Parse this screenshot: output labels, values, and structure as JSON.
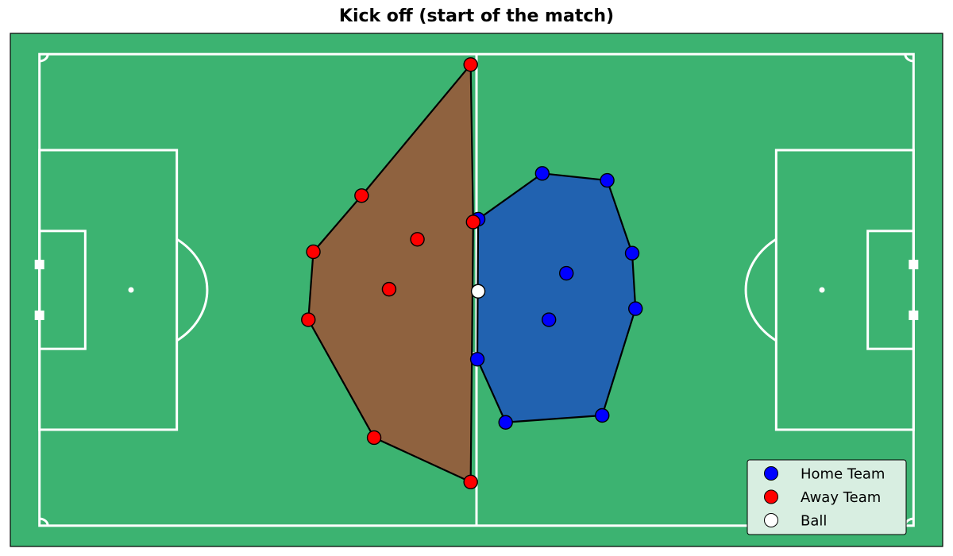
{
  "chart_data": {
    "type": "scatter",
    "title": "Kick off (start of the match)",
    "pitch_length_m": 105,
    "pitch_width_m": 68,
    "xlim": [
      -3.5,
      108.5
    ],
    "ylim": [
      -3,
      71
    ],
    "grid": false,
    "colors": {
      "pitch": "#3cb371",
      "lines": "#ffffff",
      "home": "#0000ff",
      "away": "#ff0000",
      "ball": "#ffffff",
      "home_hull": "#2162b0",
      "away_hull": "#8f623f",
      "hull_edge": "#000000"
    },
    "series": [
      {
        "name": "Home Team",
        "points": [
          [
            52.7,
            44.2
          ],
          [
            60.4,
            50.8
          ],
          [
            68.2,
            49.8
          ],
          [
            71.2,
            39.3
          ],
          [
            63.3,
            36.4
          ],
          [
            71.6,
            31.3
          ],
          [
            61.2,
            29.7
          ],
          [
            52.6,
            24.0
          ],
          [
            56.0,
            14.9
          ],
          [
            67.6,
            15.9
          ]
        ],
        "hull": [
          [
            52.6,
            24.0
          ],
          [
            56.0,
            14.9
          ],
          [
            67.6,
            15.9
          ],
          [
            71.6,
            31.3
          ],
          [
            71.2,
            39.3
          ],
          [
            68.2,
            49.8
          ],
          [
            60.4,
            50.8
          ],
          [
            52.7,
            44.2
          ]
        ]
      },
      {
        "name": "Away Team",
        "points": [
          [
            51.8,
            66.5
          ],
          [
            38.7,
            47.6
          ],
          [
            45.4,
            41.3
          ],
          [
            52.1,
            43.8
          ],
          [
            32.9,
            39.5
          ],
          [
            42.0,
            34.1
          ],
          [
            32.3,
            29.7
          ],
          [
            40.2,
            12.7
          ],
          [
            51.8,
            6.3
          ]
        ],
        "hull": [
          [
            51.8,
            66.5
          ],
          [
            52.1,
            43.8
          ],
          [
            51.8,
            6.3
          ],
          [
            40.2,
            12.7
          ],
          [
            32.3,
            29.7
          ],
          [
            32.9,
            39.5
          ],
          [
            38.7,
            47.6
          ]
        ]
      },
      {
        "name": "Ball",
        "points": [
          [
            52.7,
            33.8
          ]
        ]
      }
    ],
    "legend": {
      "placement": "lower-right",
      "entries": [
        "Home Team",
        "Away Team",
        "Ball"
      ]
    }
  }
}
